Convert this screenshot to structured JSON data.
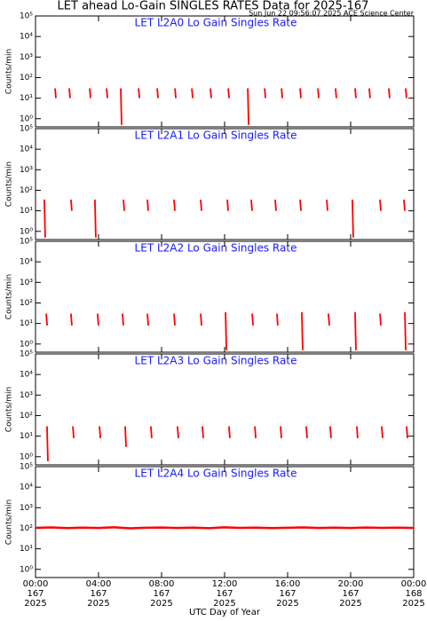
{
  "title": "LET ahead Lo-Gain SINGLES RATES Data for 2025-167",
  "subtitle": "Sun Jun 22 09:56:07 2025 ACE Science Center",
  "xlabel": "UTC Day of Year",
  "chart_data": [
    {
      "type": "spike",
      "title": "LET L2A0 Lo Gain Singles Rate",
      "ylabel": "Counts/min",
      "color": "#ff0000",
      "log_scale": true,
      "grid": false,
      "x": [
        1.24,
        2.14,
        3.44,
        4.51,
        5.41,
        6.54,
        7.72,
        8.85,
        9.92,
        11.1,
        12.23,
        13.47,
        14.54,
        15.61,
        16.79,
        17.92,
        19.04,
        20.28,
        21.18,
        22.42,
        23.49
      ],
      "values": [
        30,
        30,
        30,
        30,
        30,
        30,
        30,
        30,
        30,
        30,
        30,
        30,
        30,
        30,
        30,
        30,
        30,
        30,
        30,
        30,
        30
      ],
      "lows": [
        10,
        10,
        10,
        10,
        0.5,
        10,
        10,
        10,
        10,
        10,
        10,
        0.5,
        10,
        10,
        10,
        10,
        10,
        10,
        10,
        10,
        10
      ],
      "xlim": [
        0,
        24
      ],
      "xticks": [
        0,
        4,
        8,
        12,
        16,
        20,
        24
      ],
      "ylim": [
        0.4,
        100000
      ],
      "yticks": [
        {
          "value": 1,
          "label": "10⁰"
        },
        {
          "value": 10,
          "label": "10¹"
        },
        {
          "value": 100,
          "label": "10²"
        },
        {
          "value": 1000,
          "label": "10³"
        },
        {
          "value": 10000,
          "label": "10⁴"
        },
        {
          "value": 100000,
          "label": "10⁵"
        }
      ]
    },
    {
      "type": "spike",
      "title": "LET L2A1 Lo Gain Singles Rate",
      "ylabel": "Counts/min",
      "color": "#ff0000",
      "log_scale": true,
      "grid": false,
      "x": [
        0.56,
        2.25,
        3.77,
        5.58,
        7.1,
        8.79,
        10.48,
        12.17,
        13.69,
        15.21,
        16.79,
        18.48,
        20.11,
        21.86,
        23.38
      ],
      "values": [
        35,
        35,
        35,
        35,
        35,
        35,
        35,
        35,
        35,
        35,
        35,
        35,
        35,
        35,
        35
      ],
      "lows": [
        0.5,
        10,
        0.5,
        10,
        10,
        10,
        10,
        10,
        10,
        10,
        10,
        10,
        0.5,
        10,
        10
      ],
      "xlim": [
        0,
        24
      ],
      "xticks": [
        0,
        4,
        8,
        12,
        16,
        20,
        24
      ],
      "ylim": [
        0.4,
        100000
      ],
      "yticks": [
        {
          "value": 1,
          "label": "10⁰"
        },
        {
          "value": 10,
          "label": "10¹"
        },
        {
          "value": 100,
          "label": "10²"
        },
        {
          "value": 1000,
          "label": "10³"
        },
        {
          "value": 10000,
          "label": "10⁴"
        },
        {
          "value": 100000,
          "label": "10⁵"
        }
      ]
    },
    {
      "type": "spike",
      "title": "LET L2A2 Lo Gain Singles Rate",
      "ylabel": "Counts/min",
      "color": "#ff0000",
      "log_scale": true,
      "grid": false,
      "x": [
        0.68,
        2.25,
        3.94,
        5.52,
        7.1,
        8.79,
        10.48,
        12.06,
        13.75,
        15.32,
        16.9,
        18.59,
        20.28,
        21.86,
        23.44
      ],
      "values": [
        30,
        30,
        30,
        30,
        30,
        30,
        30,
        35,
        30,
        30,
        35,
        30,
        35,
        30,
        35
      ],
      "lows": [
        8,
        8,
        8,
        8,
        8,
        8,
        8,
        0.5,
        8,
        8,
        0.5,
        8,
        0.5,
        8,
        0.5
      ],
      "xlim": [
        0,
        24
      ],
      "xticks": [
        0,
        4,
        8,
        12,
        16,
        20,
        24
      ],
      "ylim": [
        0.4,
        100000
      ],
      "yticks": [
        {
          "value": 1,
          "label": "10⁰"
        },
        {
          "value": 10,
          "label": "10¹"
        },
        {
          "value": 100,
          "label": "10²"
        },
        {
          "value": 1000,
          "label": "10³"
        },
        {
          "value": 10000,
          "label": "10⁴"
        },
        {
          "value": 100000,
          "label": "10⁵"
        }
      ]
    },
    {
      "type": "spike",
      "title": "LET L2A3 Lo Gain Singles Rate",
      "ylabel": "Counts/min",
      "color": "#ff0000",
      "log_scale": true,
      "grid": false,
      "x": [
        0.73,
        2.37,
        4.06,
        5.69,
        7.32,
        9.01,
        10.59,
        12.28,
        13.92,
        15.55,
        17.18,
        18.7,
        20.39,
        21.97,
        23.55
      ],
      "values": [
        30,
        30,
        30,
        30,
        30,
        30,
        30,
        30,
        30,
        30,
        30,
        30,
        30,
        30,
        30
      ],
      "lows": [
        0.6,
        8,
        8,
        3,
        8,
        8,
        8,
        8,
        8,
        8,
        8,
        8,
        8,
        8,
        8
      ],
      "xlim": [
        0,
        24
      ],
      "xticks": [
        0,
        4,
        8,
        12,
        16,
        20,
        24
      ],
      "ylim": [
        0.4,
        100000
      ],
      "yticks": [
        {
          "value": 1,
          "label": "10⁰"
        },
        {
          "value": 10,
          "label": "10¹"
        },
        {
          "value": 100,
          "label": "10²"
        },
        {
          "value": 1000,
          "label": "10³"
        },
        {
          "value": 10000,
          "label": "10⁴"
        },
        {
          "value": 100000,
          "label": "10⁵"
        }
      ]
    },
    {
      "type": "line",
      "title": "LET L2A4 Lo Gain Singles Rate",
      "ylabel": "Counts/min",
      "color": "#ff0000",
      "log_scale": true,
      "grid": false,
      "x": [
        0,
        1,
        2,
        3,
        4,
        5,
        6,
        7,
        8,
        9,
        10,
        11,
        12,
        13,
        14,
        15,
        16,
        17,
        18,
        19,
        20,
        21,
        22,
        23,
        24
      ],
      "values": [
        105,
        110,
        102,
        108,
        104,
        112,
        100,
        106,
        109,
        103,
        107,
        101,
        111,
        105,
        108,
        102,
        106,
        110,
        104,
        107,
        103,
        109,
        105,
        108,
        104
      ],
      "xlim": [
        0,
        24
      ],
      "xticks": [
        {
          "value": 0,
          "label": "00:00\n167\n2025"
        },
        {
          "value": 4,
          "label": "04:00\n167\n2025"
        },
        {
          "value": 8,
          "label": "08:00\n167\n2025"
        },
        {
          "value": 12,
          "label": "12:00\n167\n2025"
        },
        {
          "value": 16,
          "label": "16:00\n167\n2025"
        },
        {
          "value": 20,
          "label": "20:00\n167\n2025"
        },
        {
          "value": 24,
          "label": "00:00\n168\n2025"
        }
      ],
      "ylim": [
        0.4,
        100000
      ],
      "yticks": [
        {
          "value": 1,
          "label": "10⁰"
        },
        {
          "value": 10,
          "label": "10¹"
        },
        {
          "value": 100,
          "label": "10²"
        },
        {
          "value": 1000,
          "label": "10³"
        },
        {
          "value": 10000,
          "label": "10⁴"
        },
        {
          "value": 100000,
          "label": "10⁵"
        }
      ]
    }
  ]
}
